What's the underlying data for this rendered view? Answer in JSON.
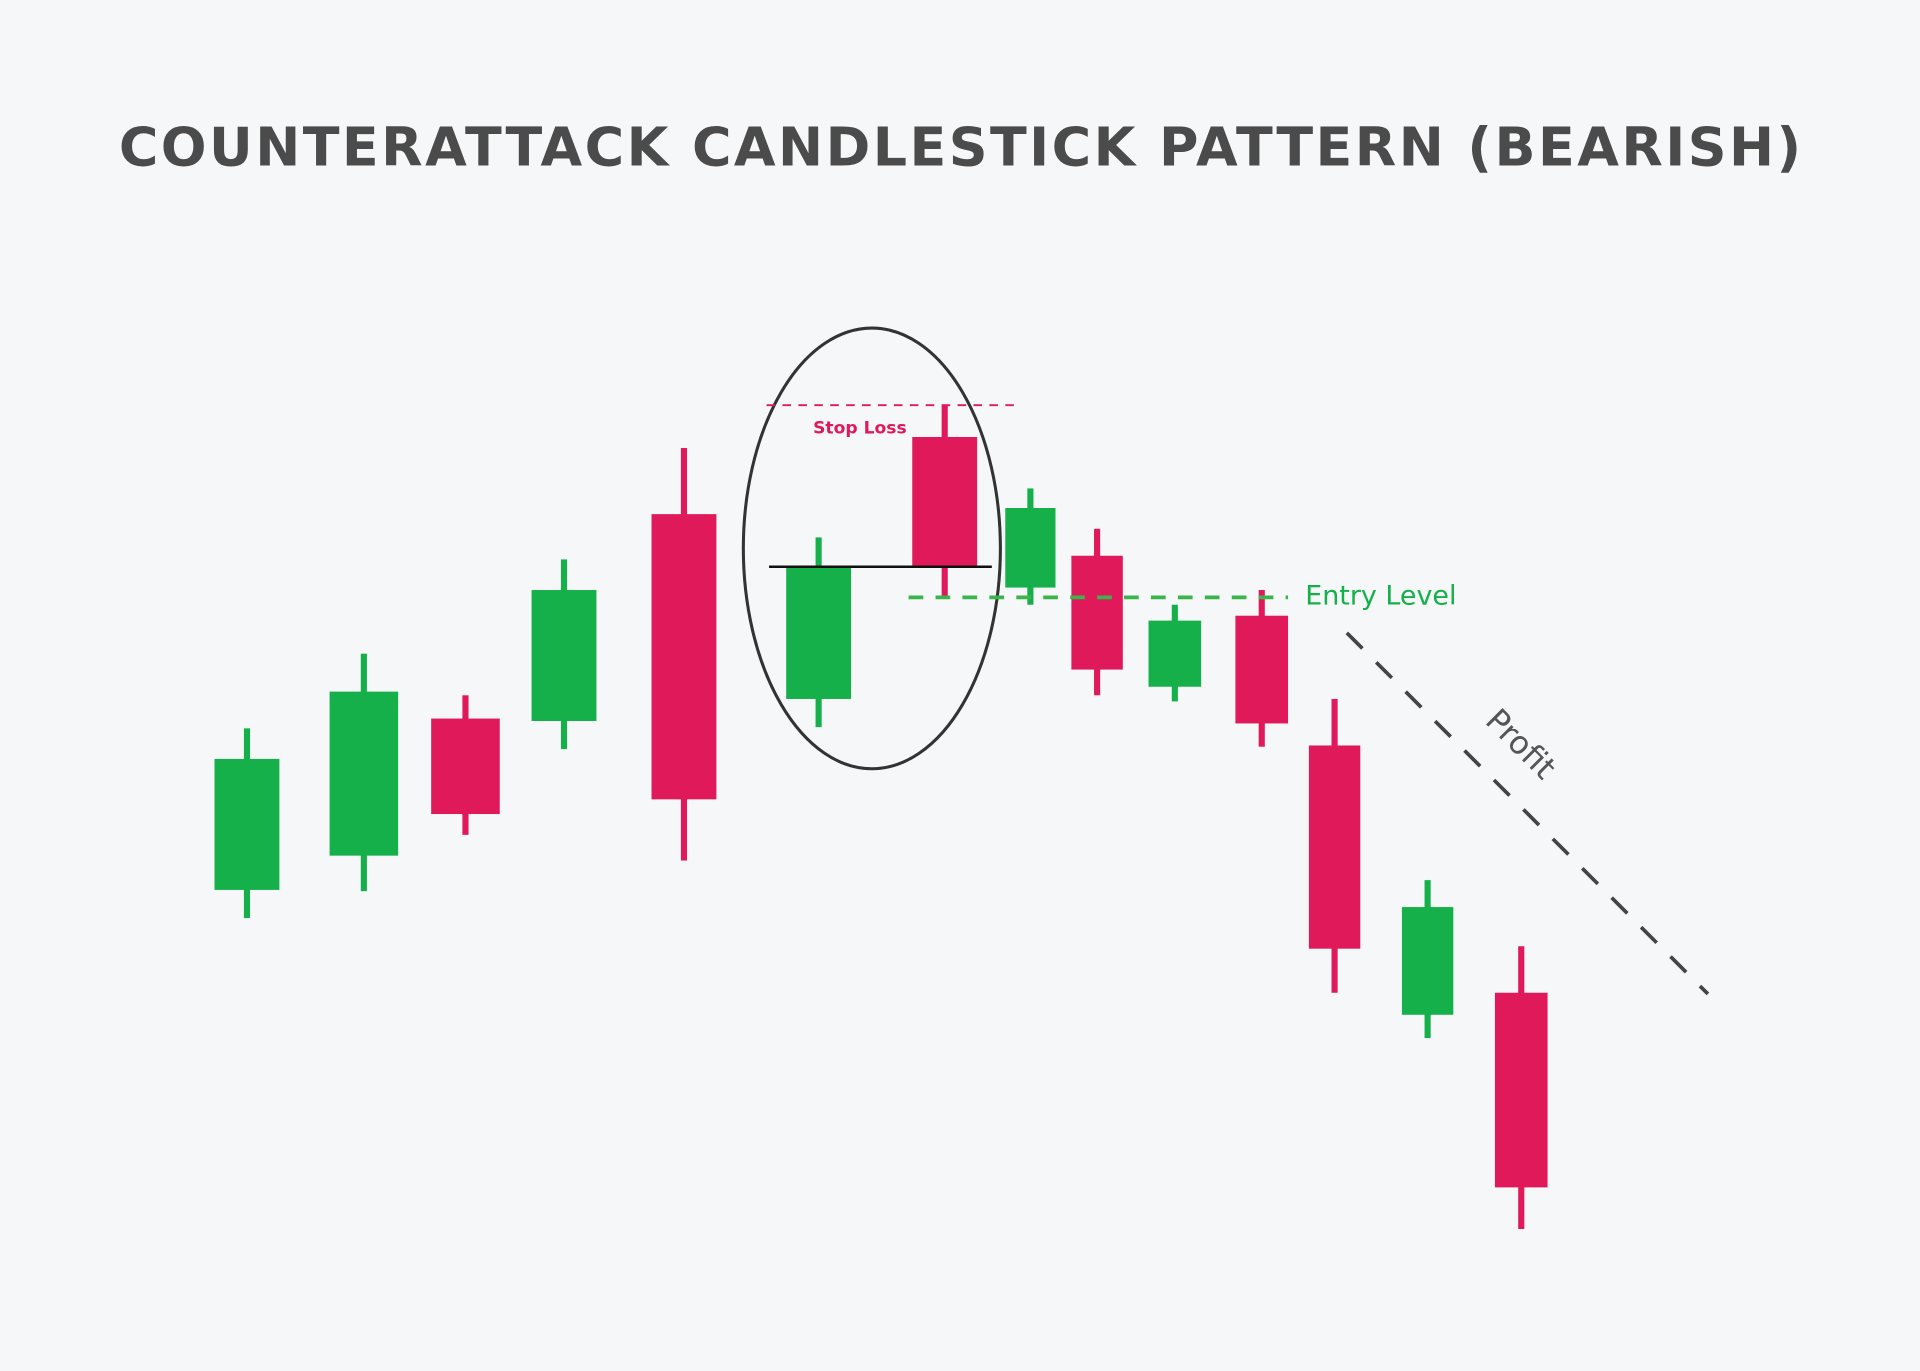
{
  "chart_data": {
    "type": "candlestick",
    "title": "COUNTERATTACK CANDLESTICK PATTERN (BEARISH)",
    "grid": false,
    "colors": {
      "bullish": "#16b04b",
      "bearish": "#e0195a",
      "text": "#4b4b4b",
      "stop_loss": "#e0195a",
      "entry": "#3bb54a",
      "pattern_outline": "#333333"
    },
    "candles": [
      {
        "open": 39.3,
        "high": 52.5,
        "low": 37.0,
        "close": 50.0
      },
      {
        "open": 42.1,
        "high": 58.6,
        "low": 39.2,
        "close": 55.5
      },
      {
        "open": 53.3,
        "high": 55.2,
        "low": 43.8,
        "close": 45.5
      },
      {
        "open": 53.1,
        "high": 66.3,
        "low": 50.8,
        "close": 63.8
      },
      {
        "open": 70.0,
        "high": 75.4,
        "low": 41.7,
        "close": 46.7
      },
      {
        "open": 54.9,
        "high": 68.1,
        "low": 52.6,
        "close": 65.7
      },
      {
        "open": 76.3,
        "high": 78.9,
        "low": 63.2,
        "close": 65.7
      },
      {
        "open": 64.0,
        "high": 72.1,
        "low": 62.6,
        "close": 70.5
      },
      {
        "open": 66.6,
        "high": 68.8,
        "low": 55.2,
        "close": 57.3
      },
      {
        "open": 55.9,
        "high": 62.6,
        "low": 54.7,
        "close": 61.3
      },
      {
        "open": 61.7,
        "high": 63.8,
        "low": 51.0,
        "close": 52.9
      },
      {
        "open": 51.1,
        "high": 54.9,
        "low": 30.9,
        "close": 34.5
      },
      {
        "open": 29.1,
        "high": 40.1,
        "low": 27.2,
        "close": 37.9
      },
      {
        "open": 30.9,
        "high": 34.7,
        "low": 11.6,
        "close": 15.0
      }
    ],
    "pattern_candles": [
      6,
      7
    ],
    "annotations": {
      "stop_loss": {
        "label": "Stop Loss",
        "level": 78.9
      },
      "entry": {
        "label": "Entry Level",
        "level": 63.2
      },
      "close_line": {
        "level": 65.7
      },
      "profit": {
        "label": "Profit",
        "direction": "down"
      }
    }
  }
}
